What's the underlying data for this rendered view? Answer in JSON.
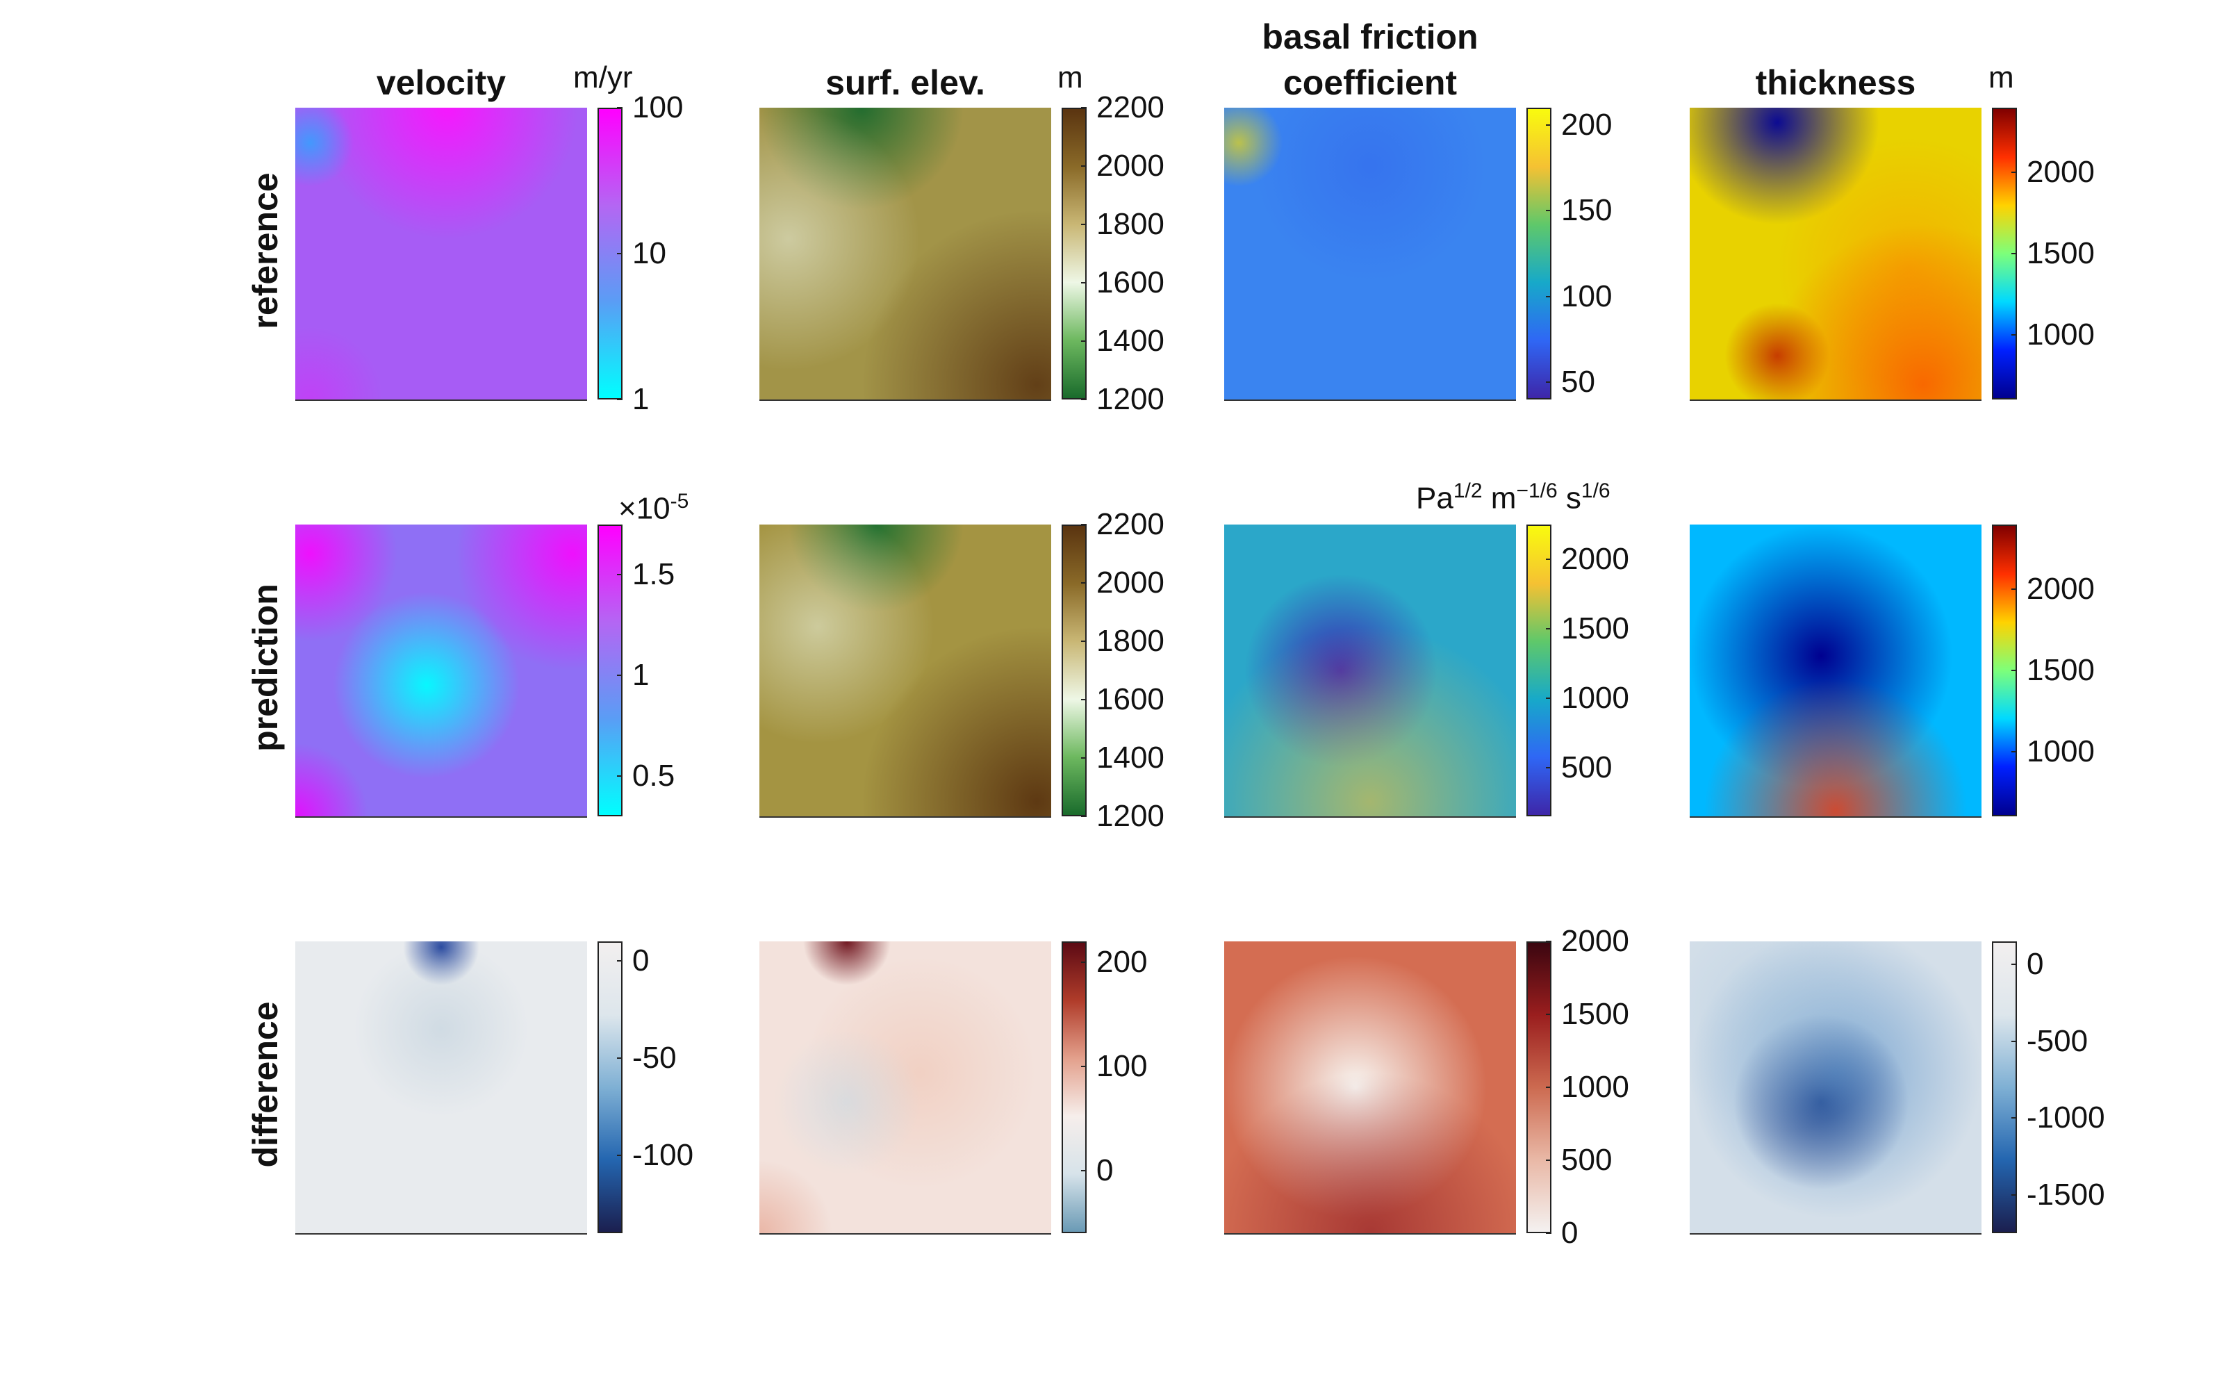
{
  "chart_data": {
    "type": "heatmap",
    "layout": "3 rows x 4 columns of map panels, each with its own colorbar",
    "column_titles": [
      "velocity",
      "surf. elev.",
      "basal friction coefficient",
      "thickness"
    ],
    "row_titles": [
      "reference",
      "prediction",
      "difference"
    ],
    "units": {
      "velocity": "m/yr",
      "surf_elev": "m",
      "friction": "Pa^1/2 m^-1/6 s^1/6",
      "thickness": "m",
      "velocity_prediction_multiplier": "×10^-5"
    },
    "panels": [
      {
        "row": "reference",
        "column": "velocity",
        "colormap": "cyan-magenta (log scale)",
        "scale": "log",
        "colorbar_ticks": [
          "1",
          "10",
          "100"
        ],
        "clim": [
          1,
          100
        ]
      },
      {
        "row": "reference",
        "column": "surf. elev.",
        "colormap": "green-white-brown",
        "colorbar_ticks": [
          "1200",
          "1400",
          "1600",
          "1800",
          "2000",
          "2200"
        ],
        "clim": [
          1200,
          2200
        ]
      },
      {
        "row": "reference",
        "column": "basal friction coefficient",
        "colormap": "parula",
        "colorbar_ticks": [
          "50",
          "100",
          "150",
          "200"
        ],
        "clim": [
          40,
          210
        ]
      },
      {
        "row": "reference",
        "column": "thickness",
        "colormap": "jet",
        "colorbar_ticks": [
          "1000",
          "1500",
          "2000"
        ],
        "clim": [
          600,
          2400
        ]
      },
      {
        "row": "prediction",
        "column": "velocity",
        "colormap": "cyan-magenta",
        "colorbar_ticks": [
          "0.5",
          "1",
          "1.5"
        ],
        "clim": [
          0.3,
          1.75
        ]
      },
      {
        "row": "prediction",
        "column": "surf. elev.",
        "colormap": "green-white-brown",
        "colorbar_ticks": [
          "1200",
          "1400",
          "1600",
          "1800",
          "2000",
          "2200"
        ],
        "clim": [
          1200,
          2200
        ]
      },
      {
        "row": "prediction",
        "column": "basal friction coefficient",
        "colormap": "parula",
        "colorbar_ticks": [
          "500",
          "1000",
          "1500",
          "2000"
        ],
        "clim": [
          150,
          2250
        ]
      },
      {
        "row": "prediction",
        "column": "thickness",
        "colormap": "jet",
        "colorbar_ticks": [
          "1000",
          "1500",
          "2000"
        ],
        "clim": [
          600,
          2400
        ]
      },
      {
        "row": "difference",
        "column": "velocity",
        "colormap": "blue-white diverging",
        "colorbar_ticks": [
          "0",
          "-50",
          "-100"
        ],
        "clim": [
          -140,
          10
        ]
      },
      {
        "row": "difference",
        "column": "surf. elev.",
        "colormap": "blue-white-red diverging",
        "colorbar_ticks": [
          "200",
          "100",
          "0"
        ],
        "clim": [
          -60,
          220
        ]
      },
      {
        "row": "difference",
        "column": "basal friction coefficient",
        "colormap": "white-red",
        "colorbar_ticks": [
          "2000",
          "1500",
          "1000",
          "500",
          "0"
        ],
        "clim": [
          0,
          2000
        ]
      },
      {
        "row": "difference",
        "column": "thickness",
        "colormap": "blue-white diverging",
        "colorbar_ticks": [
          "0",
          "-500",
          "-1000",
          "-1500"
        ],
        "clim": [
          -1750,
          150
        ]
      }
    ]
  }
}
